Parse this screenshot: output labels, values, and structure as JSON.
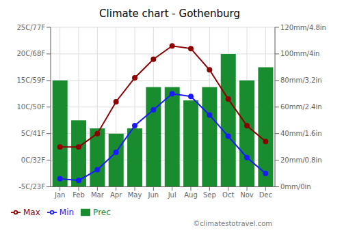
{
  "chart_data": {
    "type": "bar",
    "title": "Climate chart - Gothenburg",
    "categories": [
      "Jan",
      "Feb",
      "Mar",
      "Apr",
      "May",
      "Jun",
      "Jul",
      "Aug",
      "Sep",
      "Oct",
      "Nov",
      "Dec"
    ],
    "series": [
      {
        "name": "Prec",
        "type": "bar",
        "axis": "y2",
        "color": "#1a8c30",
        "values": [
          80,
          50,
          44,
          40,
          44,
          75,
          75,
          65,
          75,
          100,
          80,
          90
        ]
      },
      {
        "name": "Min",
        "type": "line",
        "marker": "circle",
        "color": "#1a1aff",
        "values": [
          -3.5,
          -3.8,
          -1.8,
          1.5,
          6.5,
          9.5,
          12.5,
          12.0,
          8.5,
          4.5,
          0.5,
          -2.5
        ]
      },
      {
        "name": "Max",
        "type": "line",
        "marker": "circle",
        "color": "#8b0000",
        "values": [
          2.5,
          2.5,
          5.0,
          11.0,
          15.5,
          19.0,
          21.5,
          21.0,
          17.0,
          11.5,
          6.5,
          3.5
        ]
      }
    ],
    "ylim": [
      -5,
      25
    ],
    "yticks": [
      {
        "value": -5,
        "label": "-5C/23F"
      },
      {
        "value": 0,
        "label": "0C/32F"
      },
      {
        "value": 5,
        "label": "5C/41F"
      },
      {
        "value": 10,
        "label": "10C/50F"
      },
      {
        "value": 15,
        "label": "15C/59F"
      },
      {
        "value": 20,
        "label": "20C/68F"
      },
      {
        "value": 25,
        "label": "25C/77F"
      }
    ],
    "y2lim": [
      0,
      120
    ],
    "y2ticks": [
      {
        "value": 0,
        "label": "0mm/0in"
      },
      {
        "value": 20,
        "label": "20mm/0.8in"
      },
      {
        "value": 40,
        "label": "40mm/1.6in"
      },
      {
        "value": 60,
        "label": "60mm/2.4in"
      },
      {
        "value": 80,
        "label": "80mm/3.2in"
      },
      {
        "value": 100,
        "label": "100mm/4in"
      },
      {
        "value": 120,
        "label": "120mm/4.8in"
      }
    ],
    "annotations": [
      "©climatestotravel.com"
    ],
    "grid": true,
    "legend": "lower left"
  }
}
